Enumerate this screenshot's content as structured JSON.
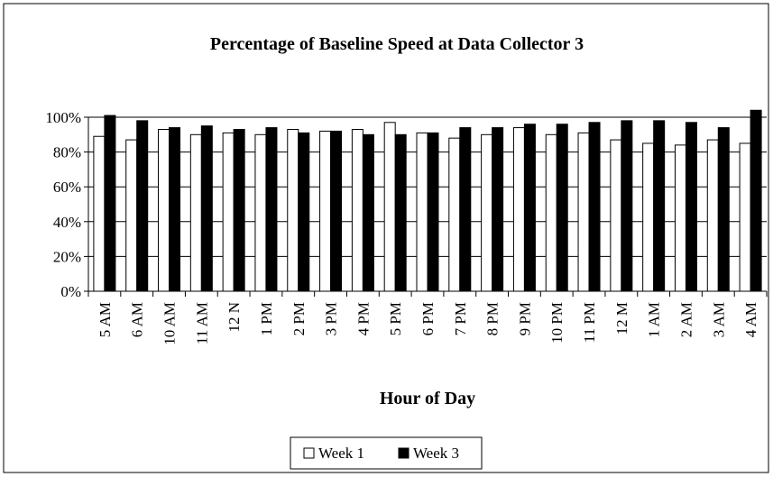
{
  "chart_data": {
    "type": "bar",
    "title": "Percentage of Baseline Speed at Data Collector 3",
    "x_label": "Hour of Day",
    "categories": [
      "5 AM",
      "6 AM",
      "10 AM",
      "11 AM",
      "12 N",
      "1 PM",
      "2 PM",
      "3 PM",
      "4 PM",
      "5 PM",
      "6 PM",
      "7 PM",
      "8 PM",
      "9 PM",
      "10 PM",
      "11 PM",
      "12 M",
      "1 AM",
      "2 AM",
      "3 AM",
      "4 AM"
    ],
    "series": [
      {
        "name": "Week 1",
        "color": "#ffffff",
        "values": [
          89,
          87,
          93,
          90,
          91,
          90,
          93,
          92,
          93,
          97,
          91,
          88,
          90,
          94,
          90,
          91,
          87,
          85,
          84,
          87,
          85
        ]
      },
      {
        "name": "Week 3",
        "color": "#000000",
        "values": [
          101,
          98,
          94,
          95,
          93,
          94,
          91,
          92,
          90,
          90,
          91,
          94,
          94,
          96,
          96,
          97,
          98,
          98,
          97,
          94,
          104
        ]
      }
    ],
    "ylim": [
      0,
      100
    ],
    "yticks": [
      {
        "value": 0,
        "label": "0%"
      },
      {
        "value": 20,
        "label": "20%"
      },
      {
        "value": 40,
        "label": "40%"
      },
      {
        "value": 60,
        "label": "60%"
      },
      {
        "value": 80,
        "label": "80%"
      },
      {
        "value": 100,
        "label": "100%"
      }
    ],
    "grid": true,
    "legend": "bottom"
  }
}
